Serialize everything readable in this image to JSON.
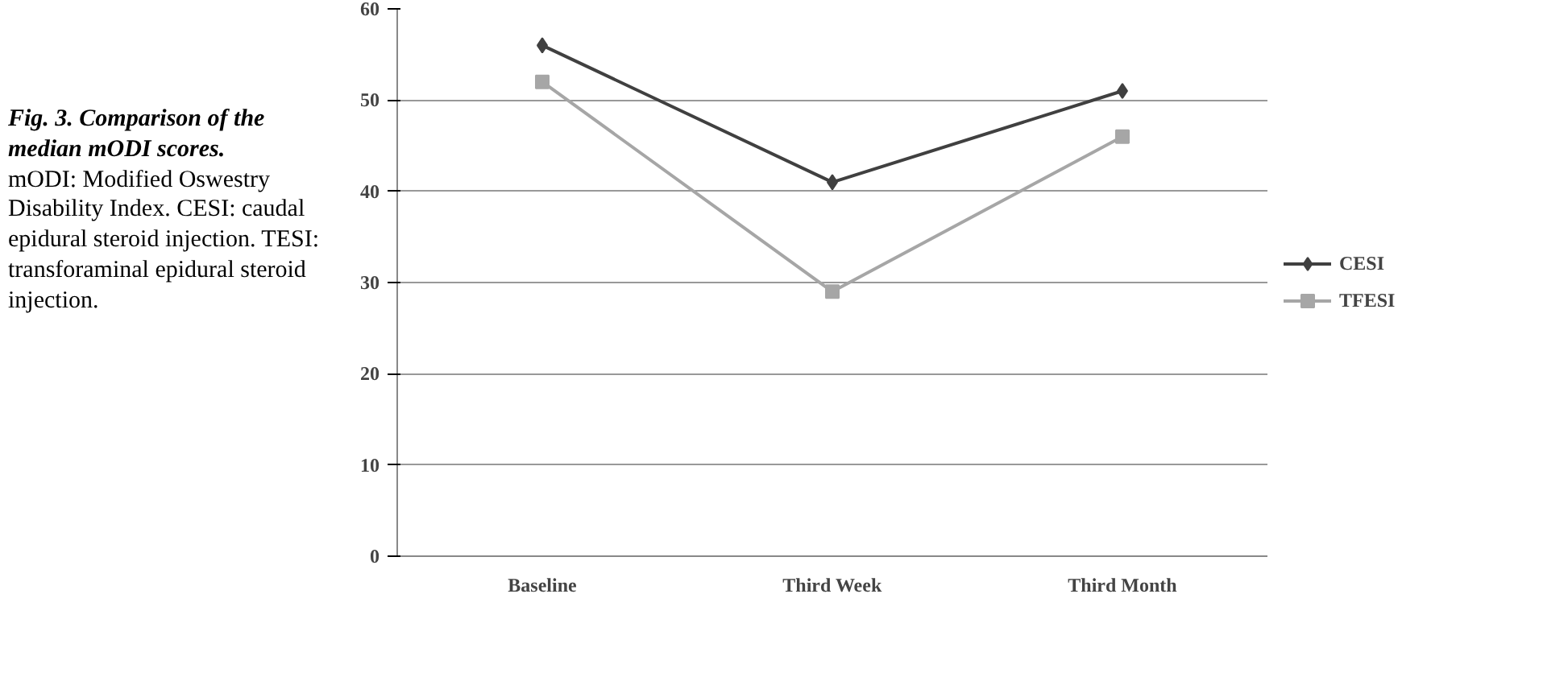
{
  "chart_data": {
    "type": "line",
    "title": "Fig. 3. Comparison of the median mODI scores.",
    "annotations": [
      "mODI: Modified Oswestry Disability Index. CESI: caudal epidural steroid injection. TESI: transforaminal epidural steroid injection."
    ],
    "categories": [
      "Baseline",
      "Third Week",
      "Third Month"
    ],
    "series": [
      {
        "name": "CESI",
        "color": "#404040",
        "marker": "diamond",
        "values": [
          56,
          41,
          51
        ]
      },
      {
        "name": "TFESI",
        "color": "#a6a6a6",
        "marker": "square",
        "values": [
          52,
          29,
          46
        ]
      }
    ],
    "ylim": [
      0,
      60
    ],
    "yticks": [
      0,
      10,
      20,
      30,
      40,
      50,
      60
    ],
    "grid": "y",
    "legend": "right"
  }
}
